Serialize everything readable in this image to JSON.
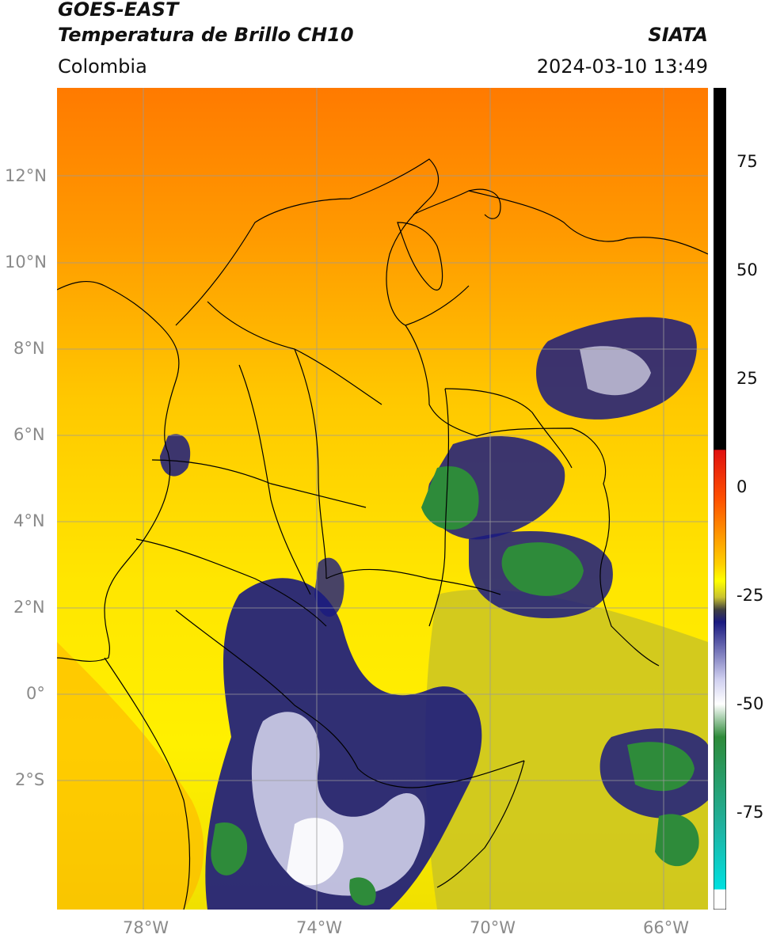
{
  "header": {
    "title_line1": "GOES-EAST",
    "title_line2": "Temperatura de Brillo CH10",
    "agency": "SIATA",
    "region": "Colombia",
    "datetime": "2024-03-10 13:49"
  },
  "map": {
    "lat_labels": [
      "12°N",
      "10°N",
      "8°N",
      "6°N",
      "4°N",
      "2°N",
      "0°",
      "2°S"
    ],
    "lon_labels": [
      "78°W",
      "74°W",
      "70°W",
      "66°W"
    ],
    "gridline_color": "#9a9a9a",
    "border_color": "#000000"
  },
  "colorbar": {
    "ticks": [
      "75",
      "50",
      "25",
      "0",
      "-25",
      "-50",
      "-75"
    ],
    "colors": {
      "warm_black": "#000000",
      "red": "#e01010",
      "orange": "#ff8000",
      "yellow": "#ffff00",
      "olive": "#a8a830",
      "navy": "#1a1a80",
      "white": "#ffffff",
      "green": "#2e8b3a",
      "teal": "#20b2a0",
      "cyan": "#00e0e0"
    }
  }
}
